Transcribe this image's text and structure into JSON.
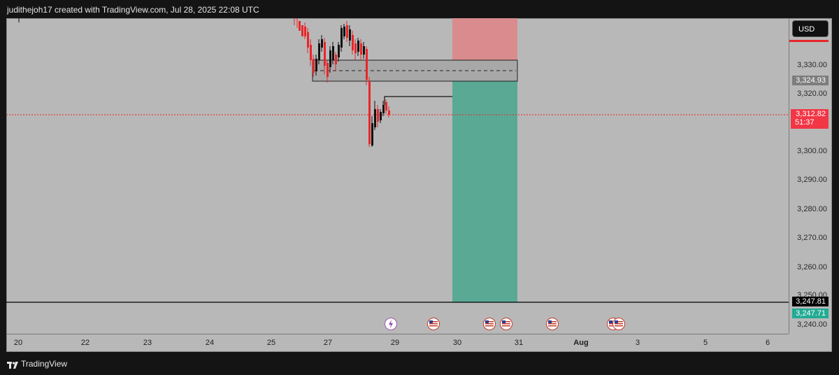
{
  "header": {
    "title": "judithejoh17 created with TradingView.com, Jul 28, 2025 22:08 UTC"
  },
  "currency_button": {
    "label": "USD"
  },
  "price_axis": {
    "ticks": [
      "3,330.00",
      "3,320.00",
      "3,300.00",
      "3,290.00",
      "3,280.00",
      "3,270.00",
      "3,260.00",
      "3,250.00",
      "3,240.00"
    ]
  },
  "price_labels": {
    "zone_price": "3,324.93",
    "current_price": "3,312.82",
    "countdown": "51:37",
    "line_price": "3,247.81",
    "target_price": "3,247.71"
  },
  "time_axis": {
    "ticks": [
      "20",
      "22",
      "23",
      "24",
      "25",
      "27",
      "29",
      "30",
      "31",
      "Aug",
      "3",
      "5",
      "6"
    ]
  },
  "footer": {
    "brand": "TradingView"
  },
  "colors": {
    "down": "#e8262a",
    "up": "#111111",
    "risk": "#e58b8b",
    "reward": "#4fab96",
    "current": "#f23645"
  },
  "icons": [
    "lightning-event-icon",
    "us-flag-event-icon"
  ]
}
